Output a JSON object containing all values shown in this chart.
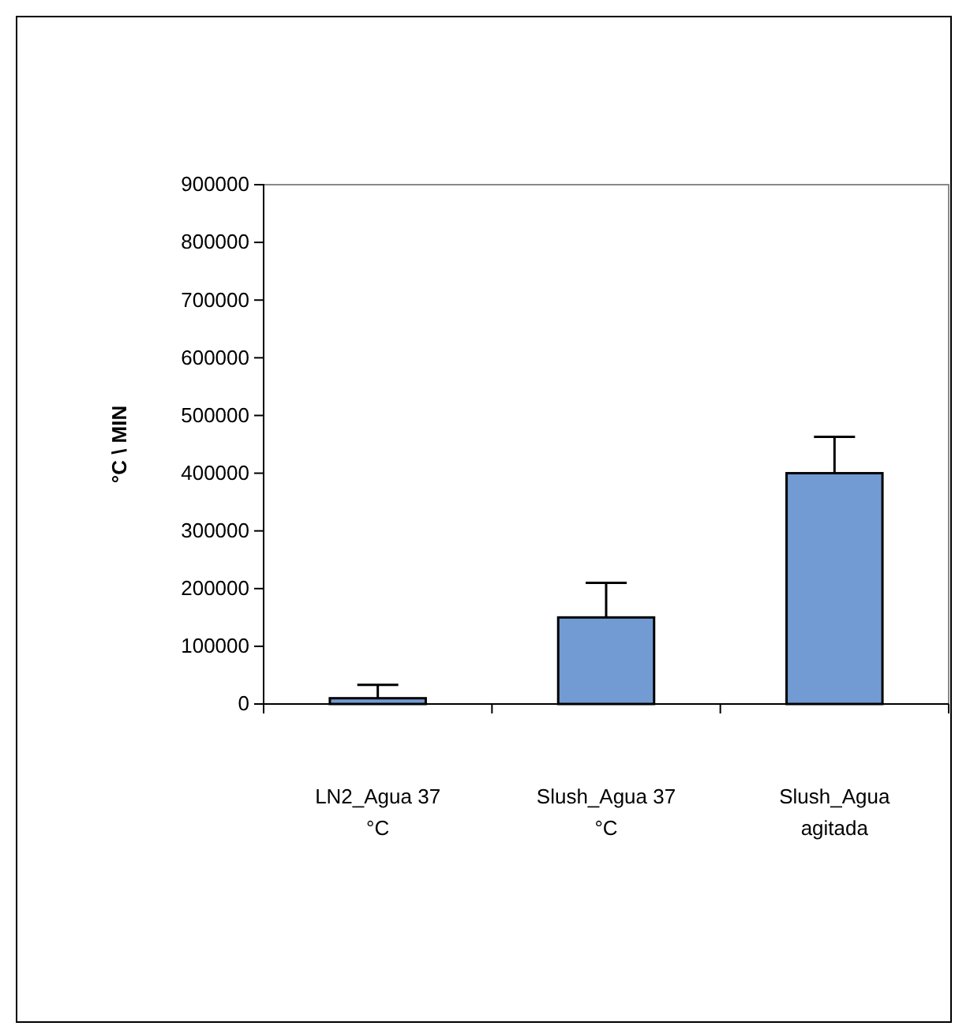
{
  "chart_data": {
    "type": "bar",
    "ylabel": "°C \\ MIN",
    "categories": [
      "LN2_Agua 37 °C",
      "Slush_Agua 37 °C",
      "Slush_Agua agitada"
    ],
    "values": [
      10000,
      150000,
      400000
    ],
    "errors": [
      [
        10000,
        33000
      ],
      [
        150000,
        210000
      ],
      [
        400000,
        463000
      ]
    ],
    "color": "#729bd3",
    "ylim": [
      0,
      900000
    ],
    "yticks": [
      0,
      100000,
      200000,
      300000,
      400000,
      500000,
      600000,
      700000,
      800000,
      900000
    ],
    "grid": false
  }
}
